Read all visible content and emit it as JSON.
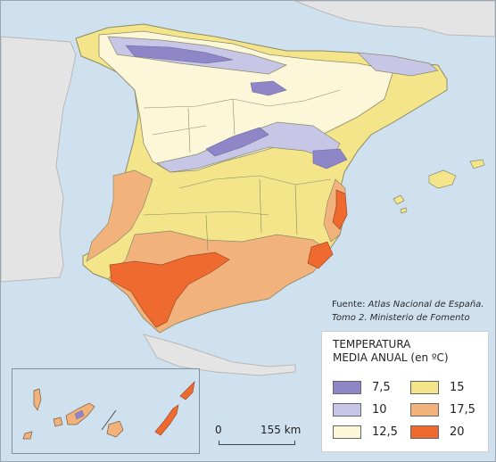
{
  "source": {
    "prefix": "Fuente: ",
    "atlas": "Atlas Nacional de España.",
    "line2": "Tomo 2. Ministerio de Fomento"
  },
  "legend": {
    "title_line1": "TEMPERATURA",
    "title_line2": "MEDIA ANUAL (en ºC)",
    "items": [
      {
        "label": "7,5",
        "color": "#8f86c8"
      },
      {
        "label": "10",
        "color": "#c8c6e6"
      },
      {
        "label": "12,5",
        "color": "#fbf7d8"
      },
      {
        "label": "15",
        "color": "#f4e58a"
      },
      {
        "label": "17,5",
        "color": "#f2b27c"
      },
      {
        "label": "20",
        "color": "#ef6a2e"
      }
    ]
  },
  "scale": {
    "zero": "0",
    "distance": "155 km"
  },
  "colors": {
    "sea": "#cfe1ef",
    "neighbour_land": "#e4e4e4",
    "province_border": "#8a8a6a"
  }
}
